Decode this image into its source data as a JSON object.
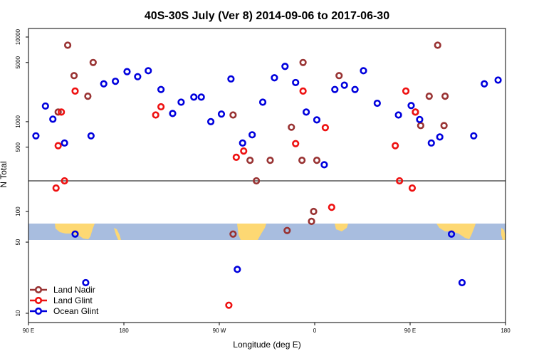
{
  "chart_data": {
    "type": "scatter",
    "title": "40S-30S July (Ver 8)   2014-09-06 to 2017-06-30",
    "xlabel": "Longitude (deg E)",
    "ylabel": "N Total",
    "x_axis": {
      "ticks": [
        {
          "value": 90,
          "label": "90 E"
        },
        {
          "value": 180,
          "label": "180"
        },
        {
          "value": 270,
          "label": "90 W"
        },
        {
          "value": 360,
          "label": "0"
        },
        {
          "value": 450,
          "label": "90 E"
        },
        {
          "value": 540,
          "label": "180"
        }
      ],
      "xlim": [
        90,
        540
      ]
    },
    "y_axis": {
      "scale": "log",
      "ticks": [
        10,
        50,
        100,
        500,
        1000,
        5000,
        10000
      ],
      "upper_panel_range": [
        200,
        10000
      ],
      "lower_panel_range": [
        10,
        200
      ],
      "panel_break": 200
    },
    "series": [
      {
        "name": "Land Nadir",
        "color": "#993333",
        "points": [
          [
            118,
            1300
          ],
          [
            127,
            8000
          ],
          [
            151,
            5000
          ],
          [
            133,
            3500
          ],
          [
            146,
            2000
          ],
          [
            283,
            1200
          ],
          [
            299,
            350
          ],
          [
            349,
            5000
          ],
          [
            348,
            350
          ],
          [
            383,
            3500
          ],
          [
            362,
            350
          ],
          [
            468,
            2000
          ],
          [
            476,
            8000
          ],
          [
            483,
            2000
          ],
          [
            482,
            900
          ],
          [
            338,
            860
          ],
          [
            318,
            350
          ],
          [
            357,
            80
          ],
          [
            334,
            65
          ],
          [
            305,
            200
          ],
          [
            359,
            100
          ],
          [
            283,
            60
          ],
          [
            455,
            1300
          ],
          [
            460,
            900
          ]
        ]
      },
      {
        "name": "Land Glint",
        "color": "#ee1111",
        "points": [
          [
            118,
            520
          ],
          [
            121,
            1300
          ],
          [
            134,
            2300
          ],
          [
            124,
            200
          ],
          [
            116,
            170
          ],
          [
            210,
            1200
          ],
          [
            215,
            1500
          ],
          [
            286,
            380
          ],
          [
            293,
            450
          ],
          [
            279,
            12
          ],
          [
            342,
            550
          ],
          [
            349,
            2300
          ],
          [
            455,
            1300
          ],
          [
            446,
            2300
          ],
          [
            436,
            520
          ],
          [
            440,
            200
          ],
          [
            452,
            170
          ],
          [
            376,
            110
          ],
          [
            370,
            850
          ]
        ]
      },
      {
        "name": "Ocean Glint",
        "color": "#0000dd",
        "points": [
          [
            97,
            680
          ],
          [
            106,
            1530
          ],
          [
            113,
            1070
          ],
          [
            124,
            560
          ],
          [
            134,
            60
          ],
          [
            149,
            680
          ],
          [
            144,
            20
          ],
          [
            161,
            2800
          ],
          [
            172,
            3000
          ],
          [
            183,
            3900
          ],
          [
            193,
            3400
          ],
          [
            203,
            4000
          ],
          [
            215,
            2400
          ],
          [
            226,
            1250
          ],
          [
            234,
            1700
          ],
          [
            246,
            1950
          ],
          [
            253,
            1950
          ],
          [
            262,
            1000
          ],
          [
            272,
            1230
          ],
          [
            281,
            3200
          ],
          [
            287,
            27
          ],
          [
            292,
            560
          ],
          [
            301,
            700
          ],
          [
            311,
            1700
          ],
          [
            322,
            3300
          ],
          [
            332,
            4500
          ],
          [
            342,
            2900
          ],
          [
            352,
            1300
          ],
          [
            362,
            1050
          ],
          [
            369,
            310
          ],
          [
            379,
            2400
          ],
          [
            388,
            2700
          ],
          [
            398,
            2400
          ],
          [
            406,
            4000
          ],
          [
            419,
            1650
          ],
          [
            439,
            1200
          ],
          [
            451,
            1550
          ],
          [
            459,
            1060
          ],
          [
            470,
            560
          ],
          [
            489,
            60
          ],
          [
            499,
            20
          ],
          [
            510,
            680
          ],
          [
            520,
            2800
          ],
          [
            533,
            3100
          ],
          [
            478,
            660
          ]
        ]
      }
    ],
    "legend": {
      "position": "bottom-left",
      "entries": [
        "Land Nadir",
        "Land Glint",
        "Ocean Glint"
      ]
    }
  }
}
